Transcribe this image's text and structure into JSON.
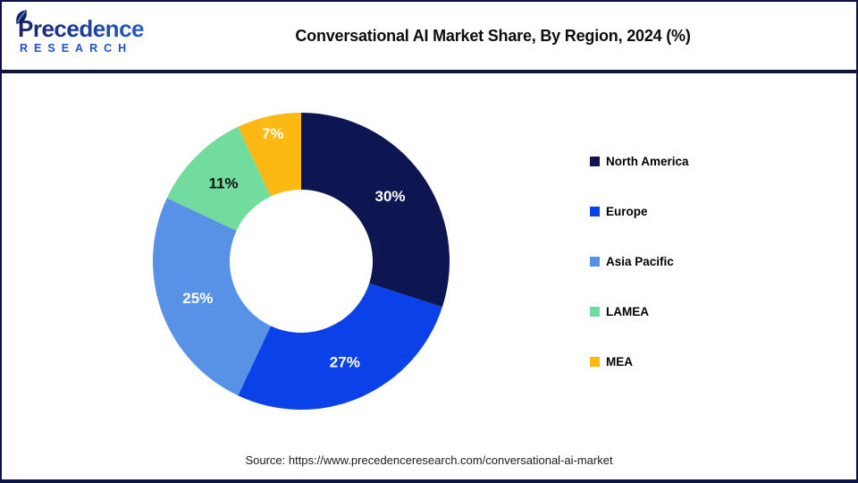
{
  "logo": {
    "name": "Precedence",
    "subname": "RESEARCH"
  },
  "header": {
    "title": "Conversational AI Market Share, By Region, 2024 (%)"
  },
  "chart_data": {
    "type": "pie",
    "subtype": "donut",
    "title": "Conversational AI Market Share, By Region, 2024 (%)",
    "unit": "%",
    "categories": [
      "North America",
      "Europe",
      "Asia Pacific",
      "LAMEA",
      "MEA"
    ],
    "values": [
      30,
      27,
      25,
      11,
      7
    ],
    "data_labels": [
      "30%",
      "27%",
      "25%",
      "11%",
      "7%"
    ],
    "colors": [
      "#0d1650",
      "#0b41e8",
      "#5792e6",
      "#72dc9e",
      "#fcb813"
    ],
    "label_colors": [
      "#ffffff",
      "#ffffff",
      "#ffffff",
      "#111111",
      "#ffffff"
    ],
    "start_angle_deg": 0,
    "direction": "clockwise",
    "inner_radius_ratio": 0.48,
    "legend_position": "right"
  },
  "footer": {
    "source": "Source: https://www.precedenceresearch.com/conversational-ai-market"
  }
}
